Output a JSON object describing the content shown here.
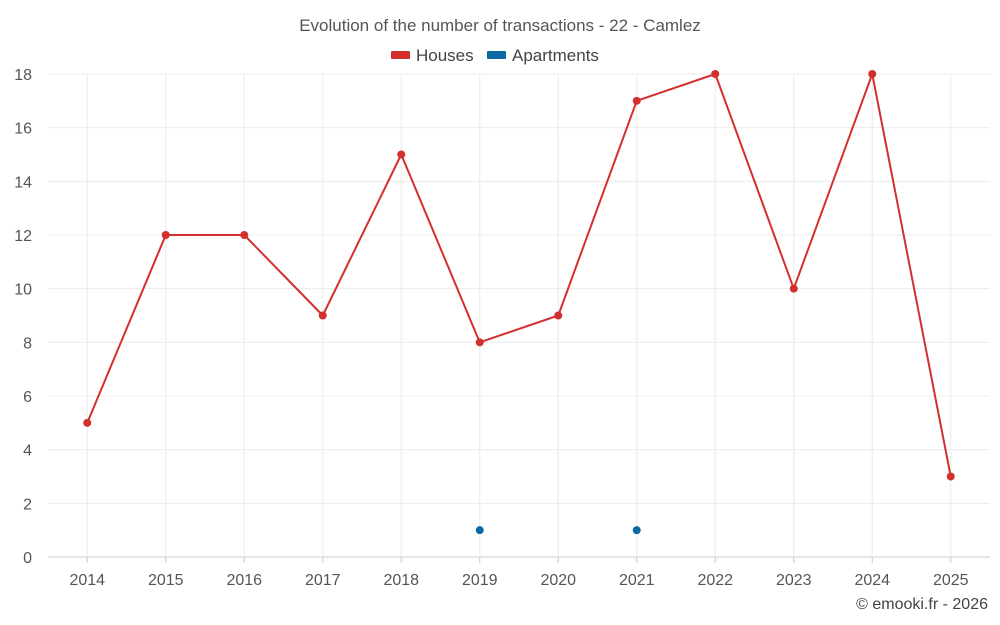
{
  "chart_data": {
    "type": "line",
    "title": "Evolution of the number of transactions - 22 - Camlez",
    "categories": [
      "2014",
      "2015",
      "2016",
      "2017",
      "2018",
      "2019",
      "2020",
      "2021",
      "2022",
      "2023",
      "2024",
      "2025"
    ],
    "ylim": [
      0,
      18
    ],
    "yticks": [
      0,
      2,
      4,
      6,
      8,
      10,
      12,
      14,
      16,
      18
    ],
    "grid": true,
    "legend_position": "top-center",
    "series": [
      {
        "name": "Houses",
        "color": "#d32f2f",
        "values": [
          5,
          12,
          12,
          9,
          15,
          8,
          9,
          17,
          18,
          10,
          18,
          3
        ]
      },
      {
        "name": "Apartments",
        "color": "#0b6aa2",
        "values": [
          null,
          null,
          null,
          null,
          null,
          1,
          null,
          1,
          null,
          null,
          null,
          null
        ]
      }
    ]
  },
  "credit": "© emooki.fr - 2026"
}
